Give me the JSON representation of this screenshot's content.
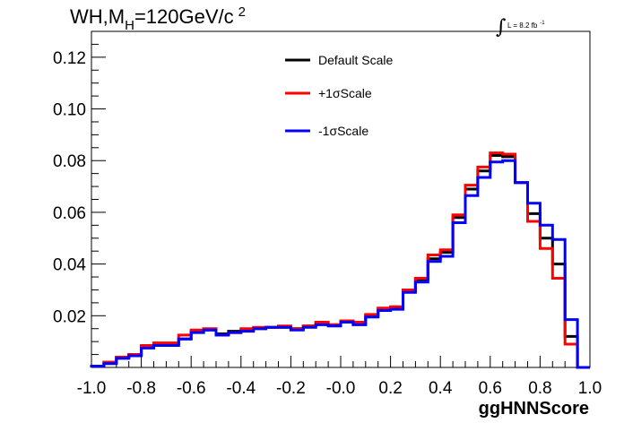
{
  "chart_data": {
    "type": "line",
    "title": "WH,M_H=120GeV/c^2",
    "title_parts": {
      "main": "WH,M",
      "sub": "H",
      "rest": "=120GeV/c",
      "sup": "2"
    },
    "lumi": {
      "integral": "∫",
      "text": "L = 8.2 fb",
      "sup": "-1"
    },
    "xlabel": "ggHNNScore",
    "ylabel": "",
    "xlim": [
      -1.0,
      1.0
    ],
    "ylim": [
      0,
      0.13
    ],
    "grid": false,
    "legend_position": "top-center",
    "x_tick_labels": [
      "-1.0",
      "-0.8",
      "-0.6",
      "-0.4",
      "-0.2",
      "-0.0",
      "0.2",
      "0.4",
      "0.6",
      "0.8",
      "1.0"
    ],
    "y_tick_labels": [
      "0.02",
      "0.04",
      "0.06",
      "0.08",
      "0.10",
      "0.12"
    ],
    "bin_edges": [
      -1.0,
      -0.95,
      -0.9,
      -0.85,
      -0.8,
      -0.75,
      -0.7,
      -0.65,
      -0.6,
      -0.55,
      -0.5,
      -0.45,
      -0.4,
      -0.35,
      -0.3,
      -0.25,
      -0.2,
      -0.15,
      -0.1,
      -0.05,
      0.0,
      0.05,
      0.1,
      0.15,
      0.2,
      0.25,
      0.3,
      0.35,
      0.4,
      0.45,
      0.5,
      0.55,
      0.6,
      0.65,
      0.7,
      0.75,
      0.8,
      0.85,
      0.9,
      0.95,
      1.0
    ],
    "series": [
      {
        "name": "Default Scale",
        "color": "#000000",
        "values": [
          0.0005,
          0.002,
          0.004,
          0.005,
          0.008,
          0.009,
          0.009,
          0.011,
          0.014,
          0.0145,
          0.013,
          0.014,
          0.0145,
          0.015,
          0.0155,
          0.0155,
          0.015,
          0.016,
          0.017,
          0.0165,
          0.018,
          0.017,
          0.02,
          0.0225,
          0.023,
          0.0295,
          0.034,
          0.042,
          0.0445,
          0.058,
          0.069,
          0.076,
          0.082,
          0.0815,
          0.0715,
          0.0595,
          0.05,
          0.04,
          0.012,
          0.0
        ]
      },
      {
        "name": "+1σScale",
        "color": "#ff0000",
        "values": [
          0.0005,
          0.002,
          0.004,
          0.005,
          0.0085,
          0.0095,
          0.0095,
          0.0125,
          0.0145,
          0.015,
          0.0125,
          0.0135,
          0.015,
          0.0155,
          0.0155,
          0.016,
          0.015,
          0.016,
          0.0175,
          0.0165,
          0.018,
          0.0175,
          0.0205,
          0.023,
          0.0235,
          0.03,
          0.0345,
          0.0435,
          0.0455,
          0.059,
          0.0705,
          0.0775,
          0.083,
          0.0825,
          0.0715,
          0.0565,
          0.046,
          0.0345,
          0.009,
          0.0
        ]
      },
      {
        "name": "-1σScale",
        "color": "#0000ff",
        "values": [
          0.0005,
          0.0015,
          0.0035,
          0.0045,
          0.0075,
          0.0085,
          0.0085,
          0.011,
          0.0135,
          0.0145,
          0.0125,
          0.0135,
          0.014,
          0.015,
          0.0155,
          0.0155,
          0.0145,
          0.0155,
          0.0165,
          0.016,
          0.0175,
          0.0165,
          0.0195,
          0.022,
          0.0225,
          0.029,
          0.033,
          0.041,
          0.043,
          0.056,
          0.0665,
          0.0735,
          0.0795,
          0.08,
          0.0715,
          0.0635,
          0.055,
          0.0495,
          0.0185,
          0.0
        ]
      }
    ]
  }
}
